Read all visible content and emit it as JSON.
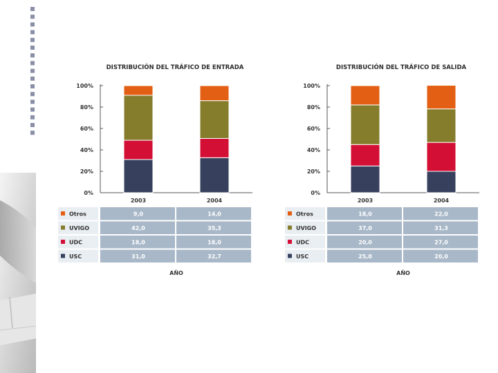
{
  "colors": {
    "Otros": "#e35f13",
    "UVIGO": "#857d2c",
    "UDC": "#d30f35",
    "USC": "#37415e",
    "table_bg": "#a8b8c8",
    "grid": "#dddddd",
    "bullet": "#8a8fa8"
  },
  "icons": [
    "bullet-dots-decoration",
    "slide-corner-decoration"
  ],
  "chart_data": [
    {
      "type": "bar",
      "stacked": true,
      "title": "DISTRIBUCIÓN DEL TRÁFICO DE ENTRADA",
      "xlabel": "AÑO",
      "ylabel": "",
      "categories": [
        "2003",
        "2004"
      ],
      "yticks": [
        "0%",
        "20%",
        "40%",
        "60%",
        "80%",
        "100%"
      ],
      "ylim": [
        0,
        100
      ],
      "series": [
        {
          "name": "Otros",
          "values": [
            9.0,
            14.0
          ],
          "labels": [
            "9,0",
            "14,0"
          ]
        },
        {
          "name": "UVIGO",
          "values": [
            42.0,
            35.3
          ],
          "labels": [
            "42,0",
            "35,3"
          ]
        },
        {
          "name": "UDC",
          "values": [
            18.0,
            18.0
          ],
          "labels": [
            "18,0",
            "18,0"
          ]
        },
        {
          "name": "USC",
          "values": [
            31.0,
            32.7
          ],
          "labels": [
            "31,0",
            "32,7"
          ]
        }
      ],
      "table": true
    },
    {
      "type": "bar",
      "stacked": true,
      "title": "DISTRIBUCIÓN DEL TRÁFICO DE SALIDA",
      "xlabel": "AÑO",
      "ylabel": "",
      "categories": [
        "2003",
        "2004"
      ],
      "yticks": [
        "0%",
        "20%",
        "40%",
        "60%",
        "80%",
        "100%"
      ],
      "ylim": [
        0,
        100
      ],
      "series": [
        {
          "name": "Otros",
          "values": [
            18.0,
            22.0
          ],
          "labels": [
            "18,0",
            "22,0"
          ]
        },
        {
          "name": "UVIGO",
          "values": [
            37.0,
            31.3
          ],
          "labels": [
            "37,0",
            "31,3"
          ]
        },
        {
          "name": "UDC",
          "values": [
            20.0,
            27.0
          ],
          "labels": [
            "20,0",
            "27,0"
          ]
        },
        {
          "name": "USC",
          "values": [
            25.0,
            20.0
          ],
          "labels": [
            "25,0",
            "20,0"
          ]
        }
      ],
      "table": true
    }
  ]
}
